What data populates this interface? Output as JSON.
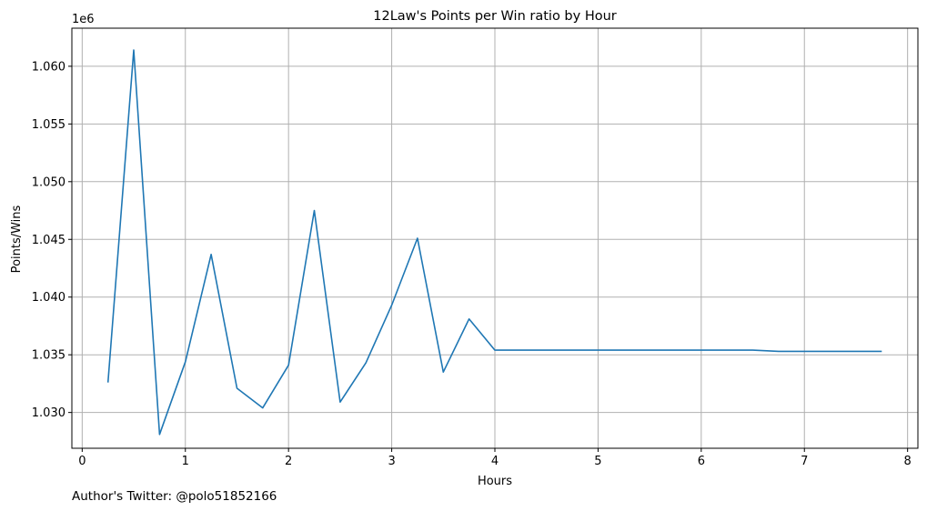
{
  "chart_data": {
    "type": "line",
    "title": "12Law's Points per Win ratio by Hour",
    "xlabel": "Hours",
    "ylabel": "Points/Wins",
    "y_offset_label": "1e6",
    "xlim": [
      -0.1,
      8.1
    ],
    "ylim": [
      1.0269,
      1.0633
    ],
    "x_ticks": [
      0,
      1,
      2,
      3,
      4,
      5,
      6,
      7,
      8
    ],
    "x_tick_labels": [
      "0",
      "1",
      "2",
      "3",
      "4",
      "5",
      "6",
      "7",
      "8"
    ],
    "y_ticks": [
      1.03,
      1.035,
      1.04,
      1.045,
      1.05,
      1.055,
      1.06
    ],
    "y_tick_labels": [
      "1.030",
      "1.035",
      "1.040",
      "1.045",
      "1.050",
      "1.055",
      "1.060"
    ],
    "grid": true,
    "series": [
      {
        "color": "#1f77b4",
        "x": [
          0.25,
          0.5,
          0.75,
          1.0,
          1.25,
          1.5,
          1.75,
          2.0,
          2.25,
          2.5,
          2.75,
          3.0,
          3.25,
          3.5,
          3.75,
          4.0,
          4.25,
          4.5,
          4.75,
          5.0,
          5.25,
          5.5,
          5.75,
          6.0,
          6.25,
          6.5,
          6.75,
          7.0,
          7.25,
          7.5,
          7.75
        ],
        "y": [
          1.0326,
          1.0614,
          1.0281,
          1.0344,
          1.0437,
          1.0321,
          1.0304,
          1.0341,
          1.0475,
          1.0309,
          1.0343,
          1.0393,
          1.0451,
          1.0335,
          1.0381,
          1.0354,
          1.0354,
          1.0354,
          1.0354,
          1.0354,
          1.0354,
          1.0354,
          1.0354,
          1.0354,
          1.0354,
          1.0354,
          1.0353,
          1.0353,
          1.0353,
          1.0353,
          1.0353
        ]
      }
    ]
  },
  "footer": {
    "credit": "Author's Twitter: @polo51852166"
  }
}
